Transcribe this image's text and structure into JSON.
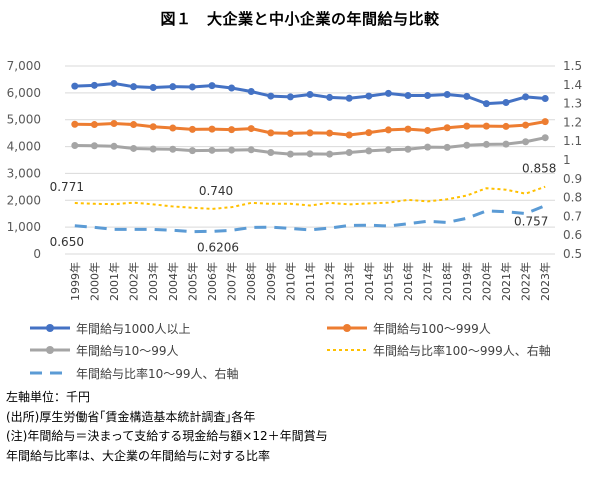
{
  "title": "図１　大企業と中小企業の年間給与比較",
  "chart_data": {
    "type": "line",
    "categories": [
      "1999年",
      "2000年",
      "2001年",
      "2002年",
      "2003年",
      "2004年",
      "2005年",
      "2006年",
      "2007年",
      "2008年",
      "2009年",
      "2010年",
      "2011年",
      "2012年",
      "2013年",
      "2014年",
      "2015年",
      "2016年",
      "2017年",
      "2018年",
      "2019年",
      "2020年",
      "2021年",
      "2022年",
      "2023年"
    ],
    "left_axis": {
      "min": 0,
      "max": 7000,
      "ticks": [
        0,
        1000,
        2000,
        3000,
        4000,
        5000,
        6000,
        7000
      ],
      "tick_labels": [
        "0",
        "1,000",
        "2,000",
        "3,000",
        "4,000",
        "5,000",
        "6,000",
        "7,000"
      ]
    },
    "right_axis": {
      "min": 0.5,
      "max": 1.5,
      "ticks": [
        0.5,
        0.6,
        0.7,
        0.8,
        0.9,
        1.0,
        1.1,
        1.2,
        1.3,
        1.4,
        1.5
      ],
      "tick_labels": [
        "0.5",
        "0.6",
        "0.7",
        "0.8",
        "0.9",
        "1",
        "1.1",
        "1.2",
        "1.3",
        "1.4",
        "1.5"
      ]
    },
    "series": [
      {
        "name": "年間給与1000人以上",
        "axis": "left",
        "style": "solid",
        "color": "#4472C4",
        "values": [
          6250,
          6280,
          6350,
          6230,
          6200,
          6230,
          6220,
          6270,
          6180,
          6050,
          5880,
          5850,
          5940,
          5830,
          5800,
          5880,
          5980,
          5900,
          5900,
          5940,
          5870,
          5600,
          5640,
          5850,
          5790
        ]
      },
      {
        "name": "年間給与100～999人",
        "axis": "left",
        "style": "solid",
        "color": "#ED7D31",
        "values": [
          4830,
          4820,
          4860,
          4820,
          4740,
          4690,
          4640,
          4650,
          4630,
          4670,
          4510,
          4490,
          4510,
          4500,
          4430,
          4520,
          4620,
          4650,
          4600,
          4700,
          4760,
          4760,
          4750,
          4800,
          4930
        ]
      },
      {
        "name": "年間給与10～99人",
        "axis": "left",
        "style": "solid",
        "color": "#A5A5A5",
        "values": [
          4040,
          4030,
          4010,
          3930,
          3910,
          3900,
          3850,
          3860,
          3870,
          3880,
          3780,
          3720,
          3730,
          3720,
          3780,
          3840,
          3880,
          3900,
          3980,
          3970,
          4050,
          4080,
          4090,
          4180,
          4330
        ]
      },
      {
        "name": "年間給与比率100～999人、右軸",
        "axis": "right",
        "style": "dotted",
        "color": "#FFC000",
        "values": [
          0.771,
          0.767,
          0.765,
          0.773,
          0.764,
          0.753,
          0.746,
          0.74,
          0.749,
          0.772,
          0.767,
          0.767,
          0.758,
          0.772,
          0.764,
          0.769,
          0.773,
          0.788,
          0.78,
          0.791,
          0.811,
          0.85,
          0.842,
          0.821,
          0.858
        ]
      },
      {
        "name": "年間給与比率10～99人、右軸",
        "axis": "right",
        "style": "dashed",
        "color": "#5B9BD5",
        "values": [
          0.65,
          0.642,
          0.631,
          0.631,
          0.631,
          0.626,
          0.619,
          0.6206,
          0.626,
          0.641,
          0.643,
          0.636,
          0.628,
          0.638,
          0.652,
          0.653,
          0.649,
          0.661,
          0.674,
          0.668,
          0.69,
          0.729,
          0.725,
          0.715,
          0.757
        ]
      }
    ],
    "data_labels": [
      {
        "text": "0.771",
        "series": 3,
        "index": 0
      },
      {
        "text": "0.740",
        "series": 3,
        "index": 7
      },
      {
        "text": "0.858",
        "series": 3,
        "index": 24
      },
      {
        "text": "0.650",
        "series": 4,
        "index": 0
      },
      {
        "text": "0.6206",
        "series": 4,
        "index": 7
      },
      {
        "text": "0.757",
        "series": 4,
        "index": 24
      }
    ],
    "gridlines": true,
    "legend_position": "bottom"
  },
  "notes": [
    "左軸単位：千円",
    "(出所)厚生労働省｢賃金構造基本統計調査｣各年",
    "(注)年間給与＝決まって支給する現金給与額×12＋年間賞与",
    "年間給与比率は、大企業の年間給与に対する比率"
  ]
}
